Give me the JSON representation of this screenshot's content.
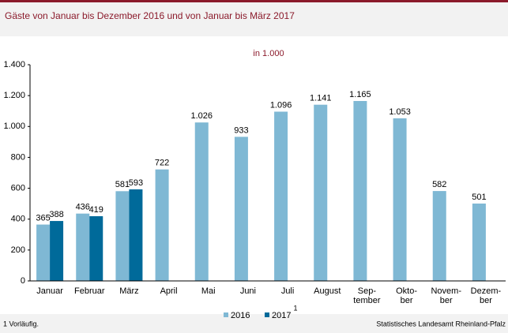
{
  "chart_data": {
    "type": "bar",
    "title": "Gäste von Januar bis Dezember 2016 und von Januar bis März 2017",
    "subtitle": "in 1.000",
    "categories": [
      "Januar",
      "Februar",
      "März",
      "April",
      "Mai",
      "Juni",
      "Juli",
      "August",
      "Sep-\ntember",
      "Okto-\nber",
      "Novem-\nber",
      "Dezem-\nber"
    ],
    "series": [
      {
        "name": "2016",
        "color": "#7fb8d4",
        "values": [
          365,
          436,
          581,
          722,
          1026,
          933,
          1096,
          1141,
          1165,
          1053,
          582,
          501
        ],
        "value_labels": [
          "365",
          "436",
          "581",
          "722",
          "1.026",
          "933",
          "1.096",
          "1.141",
          "1.165",
          "1.053",
          "582",
          "501"
        ]
      },
      {
        "name": "2017",
        "color": "#006a9a",
        "footnote_marker": "1",
        "values": [
          388,
          419,
          593,
          null,
          null,
          null,
          null,
          null,
          null,
          null,
          null,
          null
        ],
        "value_labels": [
          "388",
          "419",
          "593",
          null,
          null,
          null,
          null,
          null,
          null,
          null,
          null,
          null
        ]
      }
    ],
    "ylim": [
      0,
      1400
    ],
    "yticks": [
      0,
      200,
      400,
      600,
      800,
      {
        "value": 1000,
        "label": "1.000"
      },
      {
        "value": 1200,
        "label": "1.200"
      },
      {
        "value": 1400,
        "label": "1.400"
      }
    ],
    "grid": false,
    "legend": "bottom",
    "footnote": "1 Vorläufig.",
    "source": "Statistisches Landesamt Rheinland-Pfalz"
  }
}
